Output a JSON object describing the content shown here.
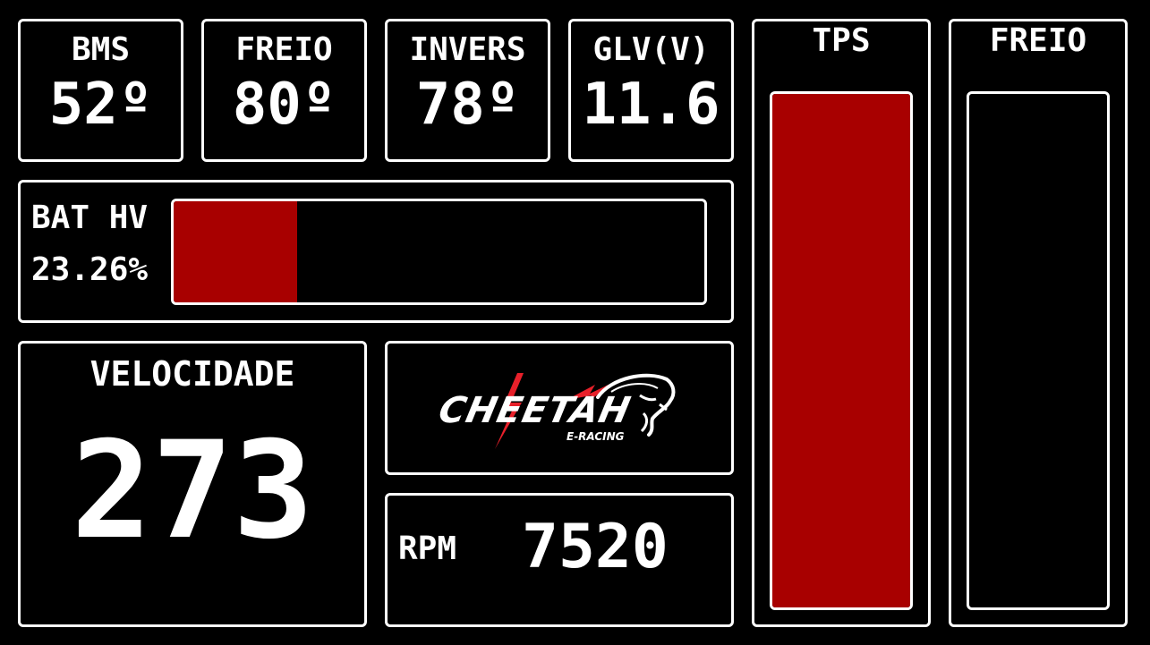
{
  "stats": [
    {
      "label": "BMS",
      "value": "52º"
    },
    {
      "label": "FREIO",
      "value": "80º"
    },
    {
      "label": "INVERS",
      "value": "78º"
    },
    {
      "label": "GLV(V)",
      "value": "11.6"
    }
  ],
  "battery": {
    "label": "BAT HV",
    "value_text": "23.26%",
    "fill_fraction": 0.2326,
    "fill_color": "#a80000"
  },
  "speed": {
    "label": "VELOCIDADE",
    "value": "273"
  },
  "rpm": {
    "label": "RPM",
    "value": "7520"
  },
  "logo": {
    "wordmark": "CHEETAH",
    "subtitle": "E-RACING",
    "accent_color": "#e8202a"
  },
  "tps": {
    "label": "TPS",
    "fill_fraction": 1.0,
    "fill_color": "#a80000"
  },
  "brake_pedal": {
    "label": "FREIO",
    "fill_fraction": 0.0,
    "fill_color": "#a80000"
  },
  "colors": {
    "background": "#000000",
    "border": "#ffffff",
    "bar_fill": "#a80000"
  }
}
